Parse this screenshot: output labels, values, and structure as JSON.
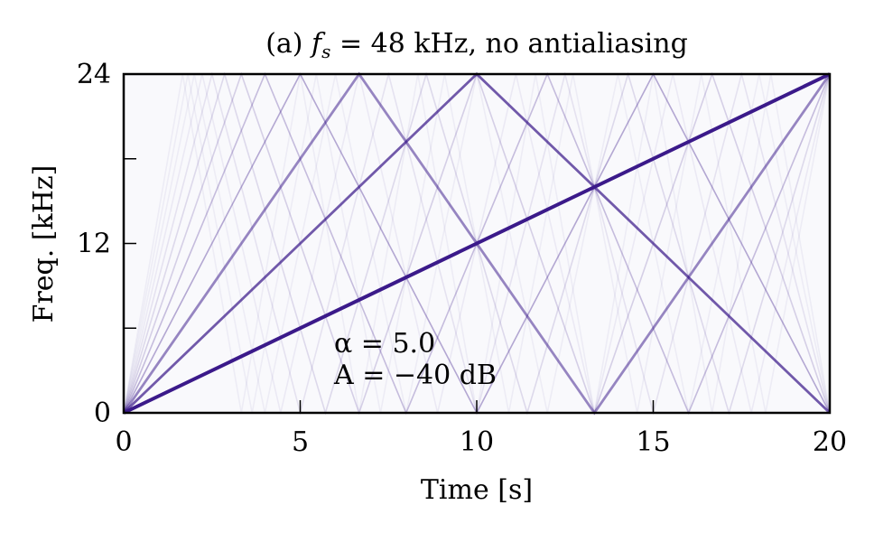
{
  "chart_data": {
    "type": "heatmap",
    "title": "(a) f_s = 48 kHz, no antialiasing",
    "title_parts": {
      "prefix": "(a) ",
      "var": "f",
      "sub": "s",
      "rest": " = 48 kHz, no antialiasing"
    },
    "xlabel": "Time [s]",
    "ylabel": "Freq. [kHz]",
    "xlim": [
      0,
      20
    ],
    "ylim": [
      0,
      24
    ],
    "xticks": [
      "0",
      "5",
      "10",
      "15",
      "20"
    ],
    "yticks": [
      "0",
      "12",
      "24"
    ],
    "y_minor_ticks": [
      6,
      18
    ],
    "sweep": {
      "f_start_khz": 0,
      "f_end_khz": 24,
      "duration_s": 20
    },
    "nyquist_khz": 24,
    "harmonics": [
      1,
      2,
      3,
      4,
      5,
      6,
      7,
      8,
      9,
      10,
      11,
      12
    ],
    "annotations": [
      "α = 5.0",
      "A = −40 dB"
    ],
    "grid": false,
    "colors": {
      "line": "#3b1a8a",
      "background": "#f9f9fc"
    }
  }
}
